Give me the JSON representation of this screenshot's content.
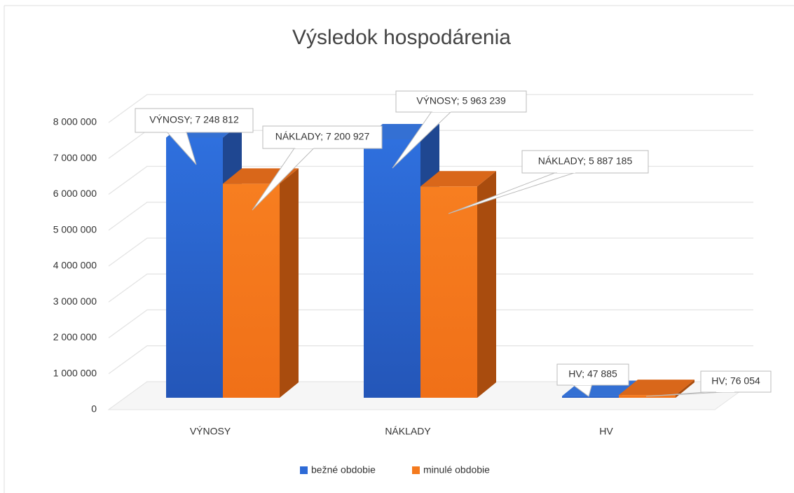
{
  "chart_data": {
    "type": "bar3d",
    "title": "Výsledok hospodárenia",
    "categories": [
      "VÝNOSY",
      "NÁKLADY",
      "HV"
    ],
    "series": [
      {
        "name": "bežné obdobie",
        "color": "#2d6ad6",
        "values": [
          7248812,
          7200927,
          47885
        ],
        "value_labels": [
          "VÝNOSY; 7 248 812",
          "NÁKLADY; 7 200 927",
          "HV; 47 885"
        ]
      },
      {
        "name": "minulé obdobie",
        "color": "#f47a1e",
        "values": [
          5963239,
          5887185,
          76054
        ],
        "value_labels": [
          "VÝNOSY; 5 963 239",
          "NÁKLADY; 5 887 185",
          "HV; 76 054"
        ]
      }
    ],
    "ylim": [
      0,
      8000000
    ],
    "yticks": [
      0,
      {
        "value": 1000000,
        "label": "1 000 000"
      },
      {
        "value": 2000000,
        "label": "2 000 000"
      },
      {
        "value": 3000000,
        "label": "3 000 000"
      },
      {
        "value": 4000000,
        "label": "4 000 000"
      },
      {
        "value": 5000000,
        "label": "5 000 000"
      },
      {
        "value": 6000000,
        "label": "6 000 000"
      },
      {
        "value": 7000000,
        "label": "7 000 000"
      },
      {
        "value": 8000000,
        "label": "8 000 000"
      }
    ],
    "grid": true,
    "legend": "bottom"
  }
}
